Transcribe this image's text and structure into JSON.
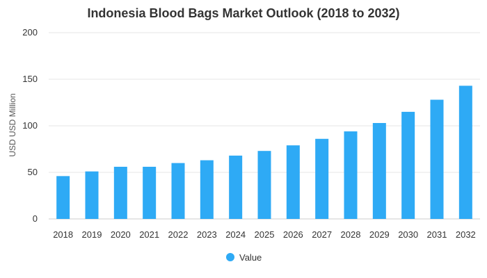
{
  "chart_data": {
    "type": "bar",
    "title": "Indonesia Blood Bags Market Outlook (2018 to 2032)",
    "ylabel": "USD USD Million",
    "xlabel": "",
    "categories": [
      "2018",
      "2019",
      "2020",
      "2021",
      "2022",
      "2023",
      "2024",
      "2025",
      "2026",
      "2027",
      "2028",
      "2029",
      "2030",
      "2031",
      "2032"
    ],
    "series": [
      {
        "name": "Value",
        "color": "#2eaaf5",
        "values": [
          46,
          51,
          56,
          56,
          60,
          63,
          68,
          73,
          79,
          86,
          94,
          103,
          115,
          128,
          143
        ]
      }
    ],
    "ylim": [
      0,
      200
    ],
    "yticks": [
      0,
      50,
      100,
      150,
      200
    ],
    "grid": true,
    "legend_position": "bottom-center"
  }
}
